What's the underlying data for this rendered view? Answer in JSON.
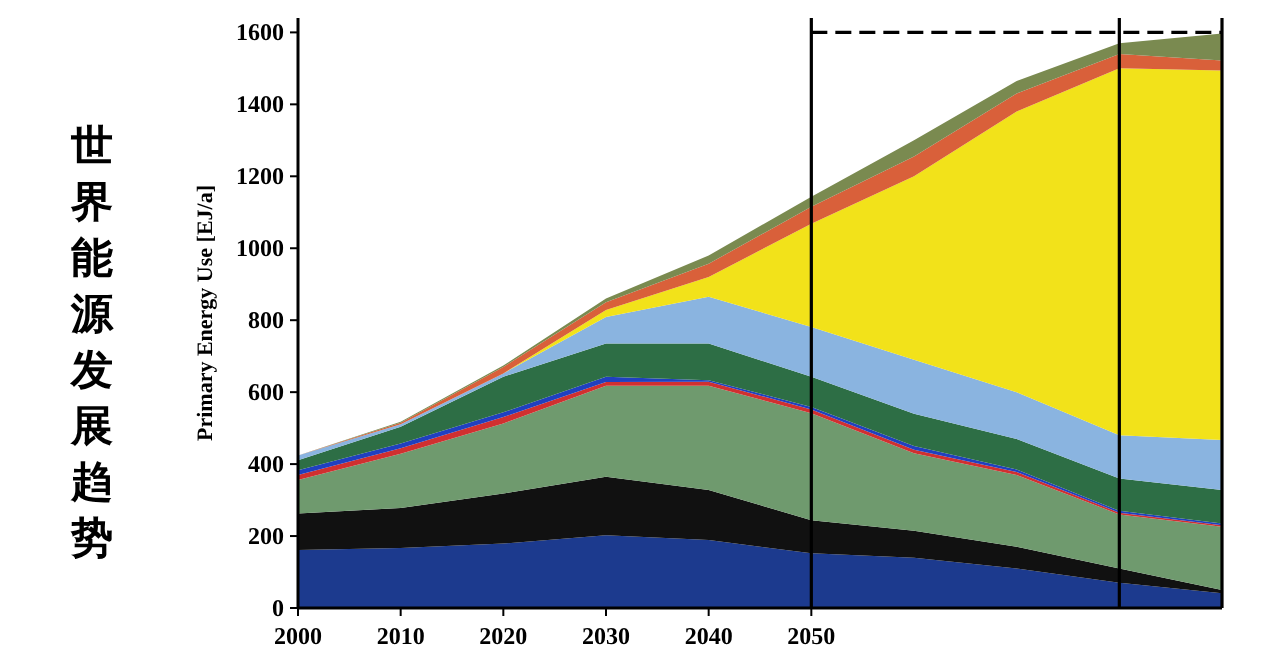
{
  "chart_data": {
    "type": "area",
    "stacked": true,
    "title": "世界能源发展趋势",
    "ylabel": "Primary Energy Use [EJ/a]",
    "x": [
      2000,
      2010,
      2020,
      2030,
      2040,
      2050,
      2060,
      2070,
      2080,
      2090
    ],
    "xlim": [
      2000,
      2090
    ],
    "xticks": [
      2000,
      2010,
      2020,
      2030,
      2040,
      2050
    ],
    "ylim": [
      0,
      1640
    ],
    "yticks": [
      0,
      200,
      400,
      600,
      800,
      1000,
      1200,
      1400,
      1600
    ],
    "series": [
      {
        "color": "#1c3a8e",
        "values": [
          161,
          167,
          179,
          202,
          189,
          152,
          140,
          110,
          70,
          41
        ]
      },
      {
        "color": "#111111",
        "values": [
          102,
          111,
          139,
          163,
          139,
          92,
          75,
          60,
          40,
          9
        ]
      },
      {
        "color": "#6f9a6e",
        "values": [
          93,
          151,
          195,
          253,
          290,
          297,
          215,
          200,
          150,
          176
        ]
      },
      {
        "color": "#d03030",
        "values": [
          14,
          15,
          18,
          10,
          11,
          11,
          10,
          8,
          5,
          4
        ]
      },
      {
        "color": "#2040c0",
        "values": [
          13,
          13,
          13,
          15,
          4,
          7,
          10,
          7,
          5,
          5
        ]
      },
      {
        "color": "#2d6e45",
        "values": [
          28,
          47,
          99,
          92,
          102,
          84,
          90,
          85,
          90,
          93
        ]
      },
      {
        "color": "#8ab4e0",
        "values": [
          13,
          7,
          9,
          74,
          130,
          138,
          150,
          130,
          120,
          139
        ]
      },
      {
        "color": "#f2e21a",
        "values": [
          0,
          0,
          0,
          19,
          55,
          287,
          510,
          780,
          1020,
          1027
        ]
      },
      {
        "color": "#d9603a",
        "values": [
          0,
          4,
          18,
          22,
          37,
          47,
          55,
          50,
          40,
          28
        ]
      },
      {
        "color": "#7a8a50",
        "values": [
          0,
          3,
          4,
          10,
          23,
          28,
          45,
          35,
          30,
          75
        ]
      }
    ],
    "ref_lines": [
      {
        "axis": "x",
        "value": 2050,
        "color": "#000000"
      },
      {
        "axis": "x",
        "value": 2080,
        "color": "#000000"
      },
      {
        "axis": "y",
        "value": 1600,
        "color": "#000000",
        "line_style": "dashed"
      }
    ]
  }
}
